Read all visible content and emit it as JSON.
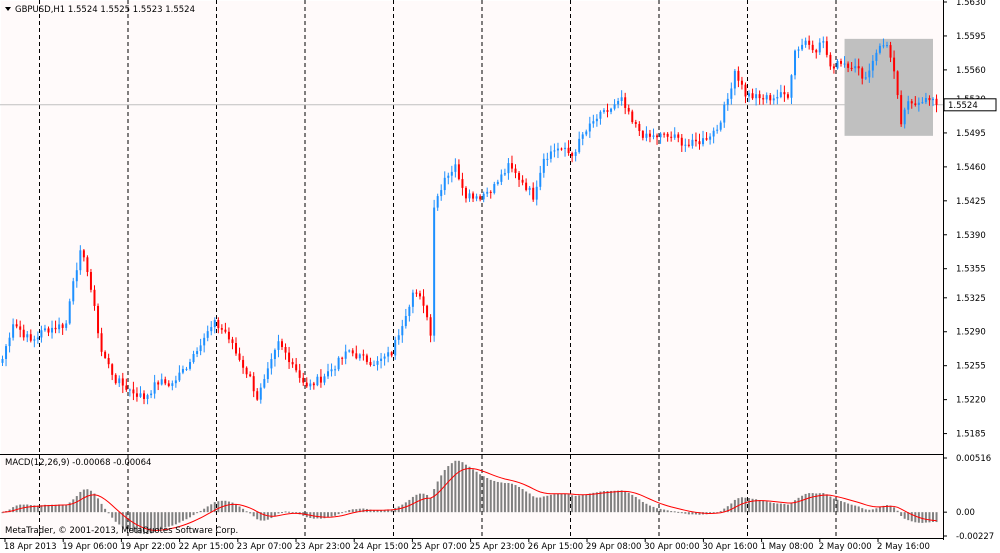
{
  "chart_data": {
    "type": "candlestick",
    "symbol_header": "GBPUSD,H1  1.5524 1.5525 1.5523 1.5524",
    "price_axis": {
      "ylim": [
        1.5166,
        1.563
      ],
      "ticks": [
        "1.5630",
        "1.5595",
        "1.5560",
        "1.5530",
        "1.5495",
        "1.5460",
        "1.5425",
        "1.5390",
        "1.5355",
        "1.5325",
        "1.5290",
        "1.5255",
        "1.5220",
        "1.5185"
      ],
      "tick_values": [
        1.563,
        1.5595,
        1.556,
        1.553,
        1.5495,
        1.546,
        1.5425,
        1.539,
        1.5355,
        1.5325,
        1.529,
        1.5255,
        1.522,
        1.5185
      ],
      "current_price_label": "1.5524",
      "current_price": 1.5524
    },
    "time_axis_labels": [
      "18 Apr 2013",
      "19 Apr 06:00",
      "19 Apr 22:00",
      "22 Apr 15:00",
      "23 Apr 07:00",
      "23 Apr 23:00",
      "24 Apr 15:00",
      "25 Apr 07:00",
      "25 Apr 23:00",
      "26 Apr 15:00",
      "29 Apr 08:00",
      "30 Apr 00:00",
      "30 Apr 16:00",
      "1 May 08:00",
      "2 May 00:00",
      "2 May 16:00"
    ],
    "period_separators": 10,
    "highlight_box": {
      "bar_range": [
        238,
        263
      ],
      "price_range": [
        1.5492,
        1.5592
      ]
    },
    "price_anchors": [
      [
        0,
        1.5262
      ],
      [
        3,
        1.53
      ],
      [
        8,
        1.528
      ],
      [
        12,
        1.5292
      ],
      [
        18,
        1.5298
      ],
      [
        20,
        1.5345
      ],
      [
        22,
        1.537
      ],
      [
        24,
        1.5355
      ],
      [
        28,
        1.527
      ],
      [
        32,
        1.524
      ],
      [
        36,
        1.523
      ],
      [
        40,
        1.5222
      ],
      [
        44,
        1.5238
      ],
      [
        48,
        1.5236
      ],
      [
        52,
        1.5255
      ],
      [
        56,
        1.528
      ],
      [
        60,
        1.5298
      ],
      [
        63,
        1.529
      ],
      [
        66,
        1.5268
      ],
      [
        70,
        1.5242
      ],
      [
        72,
        1.5222
      ],
      [
        74,
        1.5238
      ],
      [
        78,
        1.5278
      ],
      [
        82,
        1.5258
      ],
      [
        86,
        1.5232
      ],
      [
        90,
        1.5242
      ],
      [
        94,
        1.5255
      ],
      [
        98,
        1.527
      ],
      [
        102,
        1.5262
      ],
      [
        106,
        1.5258
      ],
      [
        110,
        1.5268
      ],
      [
        113,
        1.53
      ],
      [
        116,
        1.533
      ],
      [
        119,
        1.532
      ],
      [
        121,
        1.529
      ],
      [
        122,
        1.542
      ],
      [
        125,
        1.545
      ],
      [
        128,
        1.546
      ],
      [
        131,
        1.5432
      ],
      [
        135,
        1.543
      ],
      [
        139,
        1.544
      ],
      [
        143,
        1.546
      ],
      [
        147,
        1.5445
      ],
      [
        150,
        1.543
      ],
      [
        153,
        1.547
      ],
      [
        157,
        1.548
      ],
      [
        161,
        1.5472
      ],
      [
        164,
        1.5492
      ],
      [
        168,
        1.551
      ],
      [
        172,
        1.552
      ],
      [
        175,
        1.5528
      ],
      [
        178,
        1.5505
      ],
      [
        182,
        1.549
      ],
      [
        186,
        1.5492
      ],
      [
        190,
        1.549
      ],
      [
        194,
        1.5482
      ],
      [
        198,
        1.5488
      ],
      [
        202,
        1.55
      ],
      [
        205,
        1.553
      ],
      [
        207,
        1.556
      ],
      [
        210,
        1.5535
      ],
      [
        214,
        1.553
      ],
      [
        218,
        1.5532
      ],
      [
        222,
        1.5535
      ],
      [
        224,
        1.558
      ],
      [
        227,
        1.559
      ],
      [
        230,
        1.5582
      ],
      [
        232,
        1.559
      ],
      [
        234,
        1.556
      ],
      [
        236,
        1.557
      ],
      [
        240,
        1.5565
      ],
      [
        244,
        1.5552
      ],
      [
        247,
        1.558
      ],
      [
        250,
        1.5588
      ],
      [
        252,
        1.5555
      ],
      [
        254,
        1.5505
      ],
      [
        256,
        1.5525
      ],
      [
        260,
        1.553
      ],
      [
        262,
        1.5528
      ],
      [
        264,
        1.5524
      ]
    ],
    "macd": {
      "label": "MACD(12,26,9) -0.00068 -0.00064",
      "ticks": [
        "0.00516",
        "0.00",
        "-0.00227"
      ],
      "tick_values": [
        0.00516,
        0.0,
        -0.00227
      ],
      "signal_color": "#ff0000",
      "histogram_color": "#808080"
    },
    "watermark": "MetaTrader, © 2001-2013, MetaQuotes Software Corp.",
    "colors": {
      "bull": "#1e90ff",
      "bear": "#ff0000",
      "background": "#fffafa"
    }
  }
}
